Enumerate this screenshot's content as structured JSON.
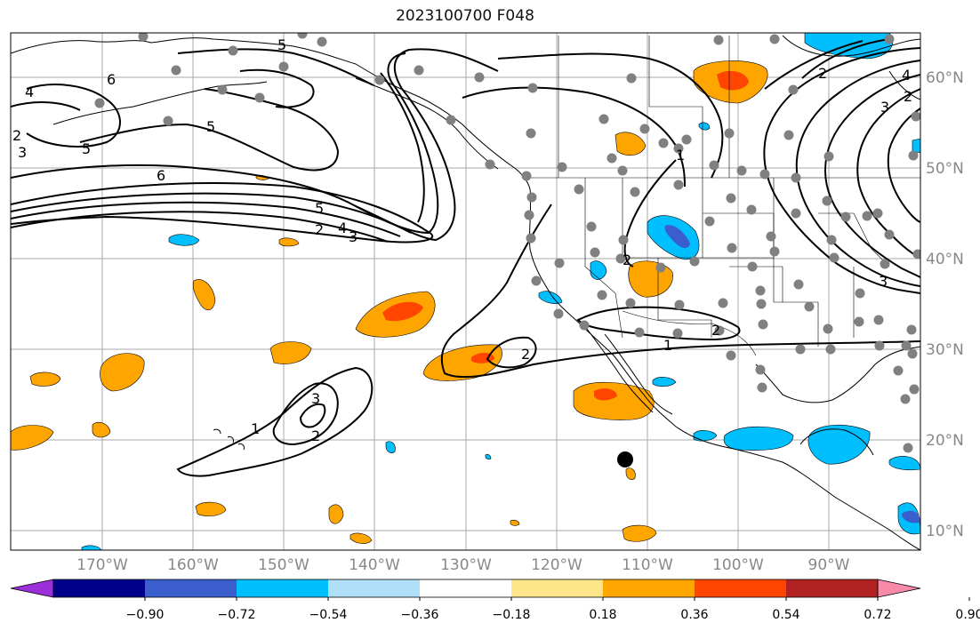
{
  "title": "2023100700 F048",
  "map": {
    "lon_labels": [
      "170°W",
      "160°W",
      "150°W",
      "140°W",
      "130°W",
      "120°W",
      "110°W",
      "100°W",
      "90°W"
    ],
    "lat_labels": [
      "60°N",
      "50°N",
      "40°N",
      "30°N",
      "20°N",
      "10°N"
    ],
    "label_color": "#888888",
    "land_outline_color": "#000000",
    "grid_color": "#aaaaaa",
    "station_color": "#808080"
  },
  "contour_labels": [
    "6",
    "4",
    "2",
    "3",
    "5",
    "5",
    "6",
    "5",
    "4",
    "3",
    "2",
    "5",
    "2",
    "4",
    "3",
    "2",
    "1",
    "2",
    "1",
    "3",
    "2",
    "1",
    "2",
    "3",
    "2"
  ],
  "colorbar": {
    "colors": [
      "#9b30d9",
      "#00008b",
      "#3a5fcd",
      "#00bfff",
      "#b0e0f8",
      "#ffffff",
      "#fde68a",
      "#ffa500",
      "#ff4500",
      "#b22222",
      "#f78aa8"
    ],
    "tick_labels": [
      "−0.90",
      "−0.72",
      "−0.54",
      "−0.36",
      "−0.18",
      "0.18",
      "0.36",
      "0.54",
      "0.72",
      "0.90"
    ]
  }
}
